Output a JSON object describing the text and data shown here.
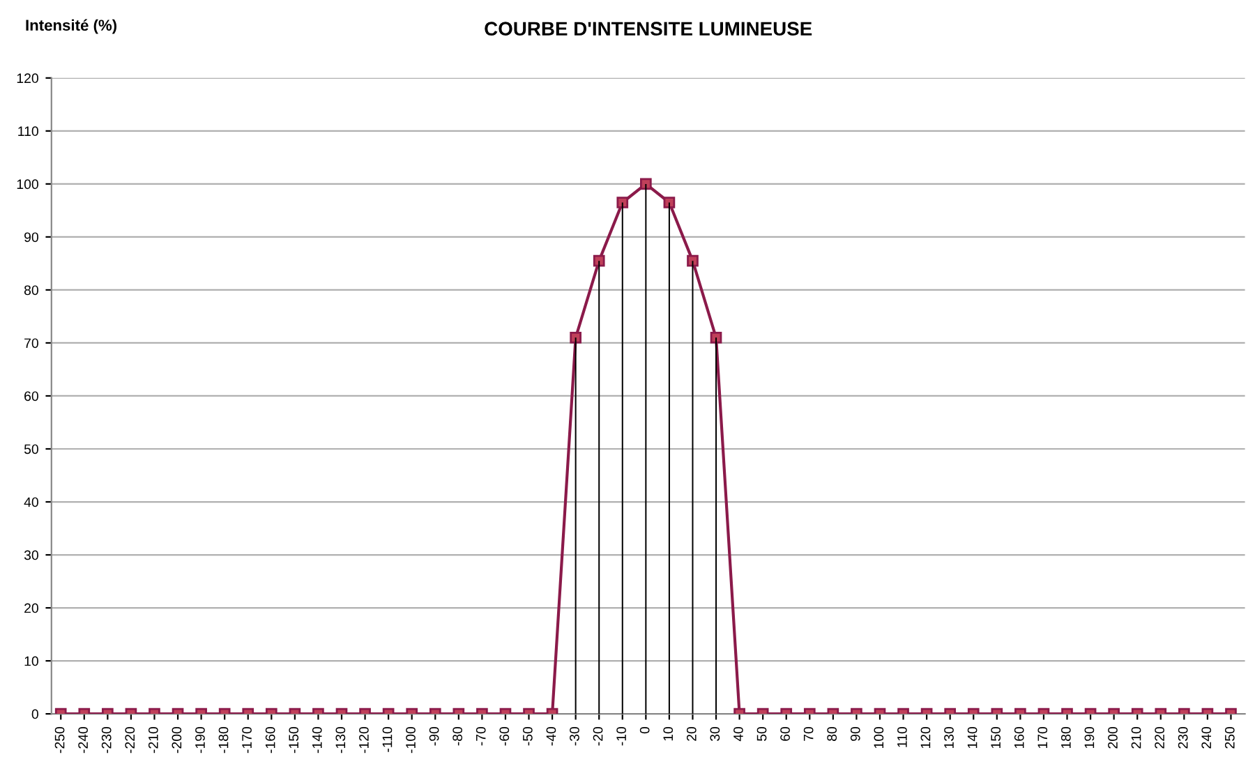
{
  "chart_data": {
    "type": "line",
    "title": "COURBE D'INTENSITE LUMINEUSE",
    "ylabel": "Intensité (%)",
    "categories": [
      "-250",
      "-240",
      "-230",
      "-220",
      "-210",
      "-200",
      "-190",
      "-180",
      "-170",
      "-160",
      "-150",
      "-140",
      "-130",
      "-120",
      "-110",
      "-100",
      "-90",
      "-80",
      "-70",
      "-60",
      "-50",
      "-40",
      "-30",
      "-20",
      "-10",
      "0",
      "10",
      "20",
      "30",
      "40",
      "50",
      "60",
      "70",
      "80",
      "90",
      "100",
      "110",
      "120",
      "130",
      "140",
      "150",
      "160",
      "170",
      "180",
      "190",
      "200",
      "210",
      "220",
      "230",
      "240",
      "250"
    ],
    "series": [
      {
        "color": "#8b1a4a",
        "values": [
          0,
          0,
          0,
          0,
          0,
          0,
          0,
          0,
          0,
          0,
          0,
          0,
          0,
          0,
          0,
          0,
          0,
          0,
          0,
          0,
          0,
          0,
          71,
          85.5,
          96.5,
          100,
          96.5,
          85.5,
          71,
          0,
          0,
          0,
          0,
          0,
          0,
          0,
          0,
          0,
          0,
          0,
          0,
          0,
          0,
          0,
          0,
          0,
          0,
          0,
          0,
          0,
          0
        ]
      },
      {
        "type": "bar",
        "color": "#000000",
        "values": [
          null,
          null,
          null,
          null,
          null,
          null,
          null,
          null,
          null,
          null,
          null,
          null,
          null,
          null,
          null,
          null,
          null,
          null,
          null,
          null,
          null,
          null,
          71,
          85.5,
          96.5,
          100,
          96.5,
          85.5,
          71,
          null,
          null,
          null,
          null,
          null,
          null,
          null,
          null,
          null,
          null,
          null,
          null,
          null,
          null,
          null,
          null,
          null,
          null,
          null,
          null,
          null,
          null
        ]
      }
    ],
    "ylim": [
      0,
      120
    ],
    "yticks": [
      0,
      10,
      20,
      30,
      40,
      50,
      60,
      70,
      80,
      90,
      100,
      110,
      120
    ],
    "grid": "y",
    "marker": "square",
    "line_style": "solid",
    "legend": false
  }
}
